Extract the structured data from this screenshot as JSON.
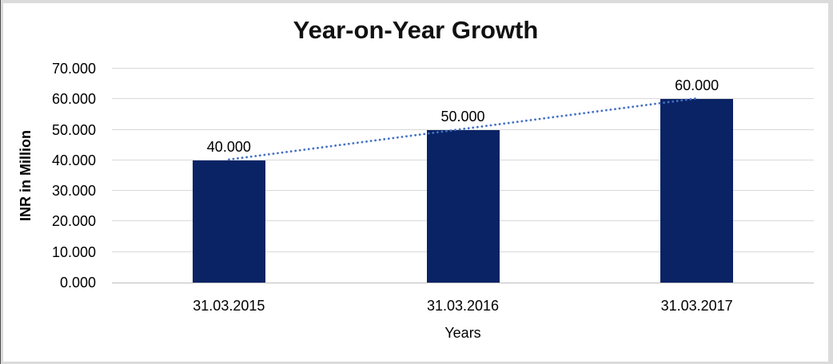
{
  "window": {
    "frame_color": "#DBDBDB",
    "edge_color": "#4D4D4D",
    "background": "#FFFFFF"
  },
  "chart_data": {
    "type": "bar",
    "title": "Year-on-Year Growth",
    "categories": [
      "31.03.2015",
      "31.03.2016",
      "31.03.2017"
    ],
    "values": [
      40000,
      50000,
      60000
    ],
    "value_labels": [
      "40.000",
      "50.000",
      "60.000"
    ],
    "xlabel": "Years",
    "ylabel": "INR in Million",
    "ylim": [
      0,
      70000
    ],
    "ytick_step": 10000,
    "ytick_labels": [
      "0.000",
      "10.000",
      "20.000",
      "30.000",
      "40.000",
      "50.000",
      "60.000",
      "70.000"
    ],
    "grid": true,
    "legend": false,
    "bar_color": "#0A2365",
    "gridline_color": "#D9D9D9",
    "axis_line_color": "#BFBFBF",
    "text_color": "#000000",
    "trendline": {
      "type": "linear",
      "style": "dotted",
      "color": "#4472C4",
      "points": [
        [
          0,
          40000
        ],
        [
          2,
          60000
        ]
      ]
    }
  }
}
